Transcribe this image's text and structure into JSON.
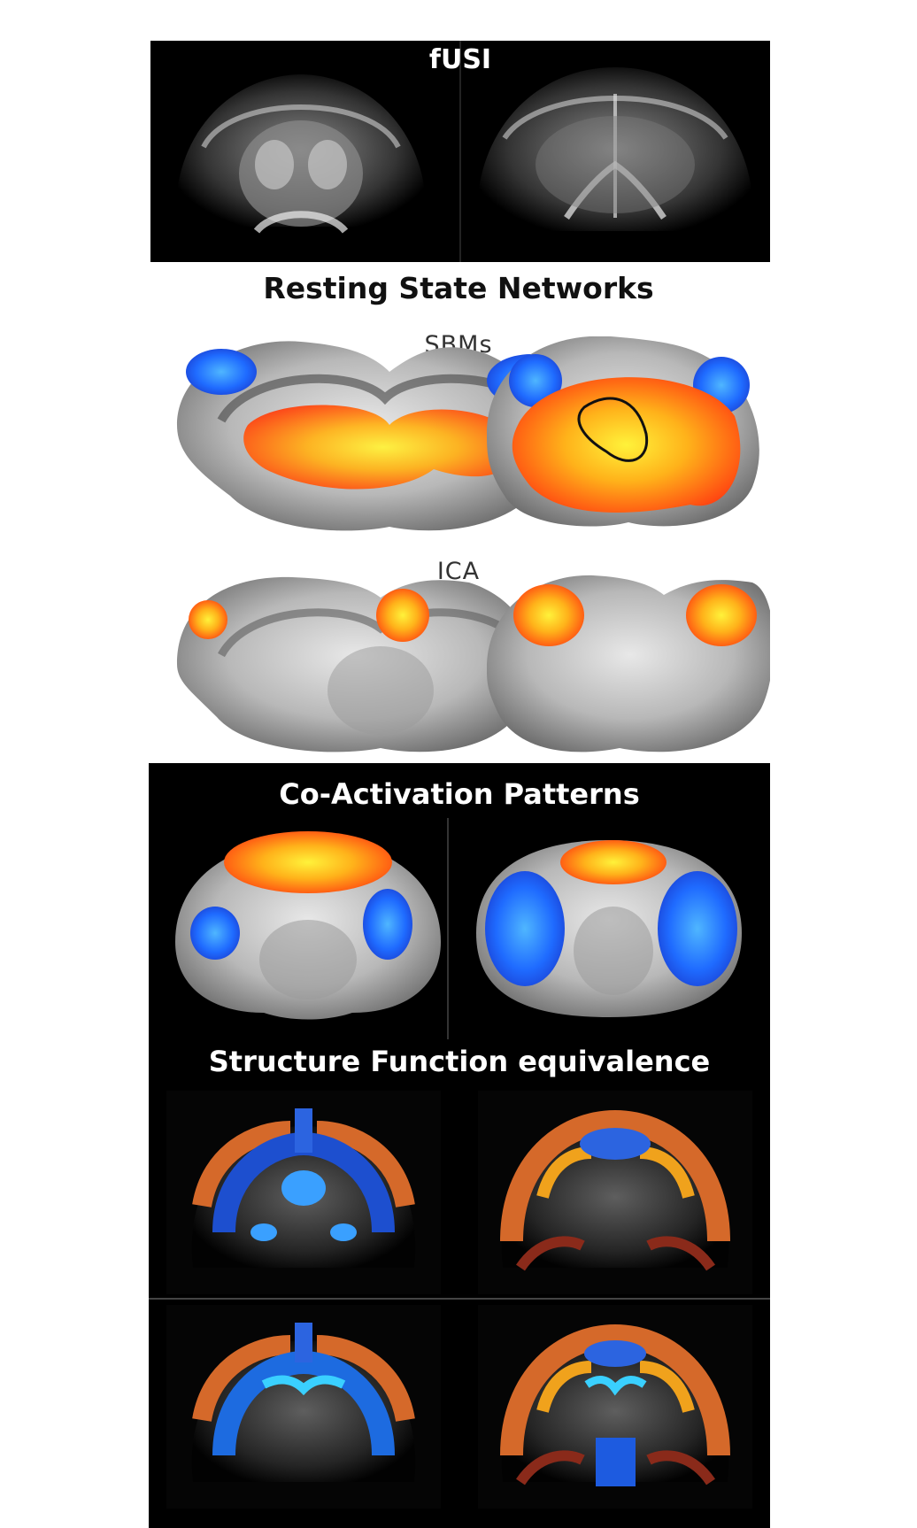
{
  "sections": {
    "fusi": {
      "title": "fUSI"
    },
    "rsn": {
      "title": "Resting State Networks",
      "sbm_label": "SBMs",
      "ica_label": "ICA"
    },
    "cap": {
      "title": "Co-Activation Patterns"
    },
    "sfe": {
      "title": "Structure Function equivalence"
    }
  },
  "colors": {
    "background": "#ffffff",
    "panel_dark": "#000000",
    "hot": "#ff3a10",
    "warm": "#ffd21f",
    "cold": "#1f4fff",
    "cyan": "#3ad0ff",
    "orange_atlas": "#d5692a"
  }
}
